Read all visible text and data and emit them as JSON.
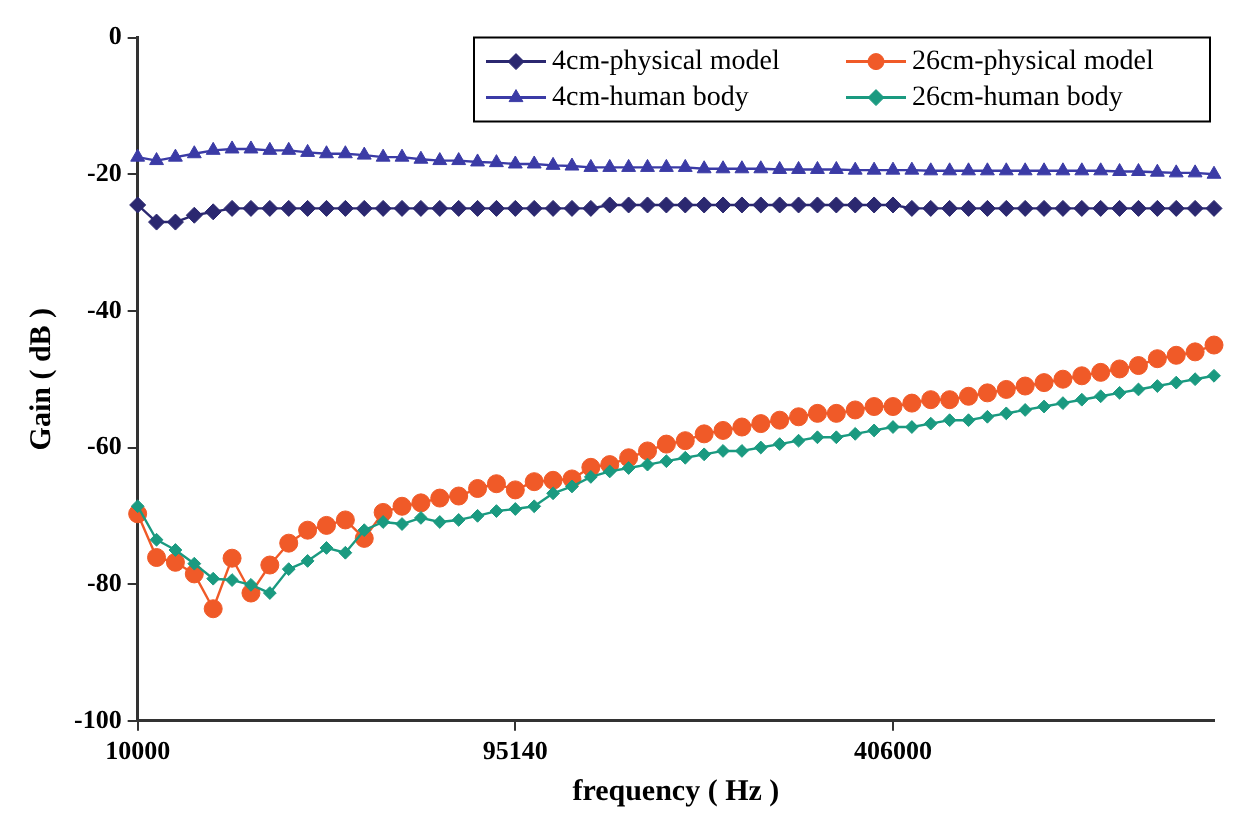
{
  "chart_data": {
    "type": "line",
    "xlabel": "frequency ( Hz )",
    "ylabel": "Gain ( dB )",
    "categories": [
      "10000",
      null,
      null,
      null,
      null,
      null,
      null,
      null,
      null,
      null,
      null,
      null,
      null,
      null,
      null,
      null,
      null,
      null,
      null,
      null,
      "95140",
      null,
      null,
      null,
      null,
      null,
      null,
      null,
      null,
      null,
      null,
      null,
      null,
      null,
      null,
      null,
      null,
      null,
      null,
      null,
      "406000",
      null,
      null,
      null,
      null,
      null,
      null,
      null,
      null,
      null,
      null,
      null,
      null,
      null,
      null,
      null,
      null,
      null
    ],
    "ylim": [
      -100,
      0
    ],
    "yticks": [
      -100,
      -80,
      -60,
      -40,
      -20,
      0
    ],
    "grid": false,
    "legend": "top right",
    "line_style": "solid",
    "series": [
      {
        "name": "4cm-physical model",
        "color": "#2b2870",
        "marker": "diamond",
        "values": [
          -24.5,
          -27,
          -27,
          -26,
          -25.5,
          -25,
          -25,
          -25,
          -25,
          -25,
          -25,
          -25,
          -25,
          -25,
          -25,
          -25,
          -25,
          -25,
          -25,
          -25,
          -25,
          -25,
          -25,
          -25,
          -25,
          -24.5,
          -24.5,
          -24.5,
          -24.5,
          -24.5,
          -24.5,
          -24.5,
          -24.5,
          -24.5,
          -24.5,
          -24.5,
          -24.5,
          -24.5,
          -24.5,
          -24.5,
          -24.5,
          -25,
          -25,
          -25,
          -25,
          -25,
          -25,
          -25,
          -25,
          -25,
          -25,
          -25,
          -25,
          -25,
          -25,
          -25,
          -25,
          -25
        ]
      },
      {
        "name": "26cm-physical model",
        "color": "#f05a28",
        "marker": "circle",
        "values": [
          -69.7,
          -76.1,
          -76.8,
          -78.5,
          -83.6,
          -76.2,
          -81.3,
          -77.2,
          -74,
          -72.1,
          -71.4,
          -70.6,
          -73.3,
          -69.5,
          -68.6,
          -68.1,
          -67.4,
          -67.1,
          -66,
          -65.3,
          -66.2,
          -65,
          -64.8,
          -64.6,
          -62.9,
          -62.5,
          -61.5,
          -60.5,
          -59.5,
          -59,
          -58,
          -57.5,
          -57,
          -56.5,
          -56,
          -55.5,
          -55,
          -55,
          -54.5,
          -54,
          -54,
          -53.5,
          -53,
          -53,
          -52.5,
          -52,
          -51.5,
          -51,
          -50.5,
          -50,
          -49.5,
          -49,
          -48.5,
          -48,
          -47,
          -46.5,
          -46,
          -45
        ]
      },
      {
        "name": "4cm-human body",
        "color": "#3b3ba6",
        "marker": "triangle",
        "values": [
          -17.5,
          -18,
          -17.5,
          -17,
          -16.5,
          -16.3,
          -16.3,
          -16.5,
          -16.5,
          -16.8,
          -17,
          -17,
          -17.2,
          -17.5,
          -17.5,
          -17.8,
          -18,
          -18,
          -18.2,
          -18.3,
          -18.5,
          -18.5,
          -18.7,
          -18.8,
          -19,
          -19,
          -19,
          -19,
          -19,
          -19,
          -19.2,
          -19.2,
          -19.2,
          -19.2,
          -19.3,
          -19.3,
          -19.3,
          -19.3,
          -19.4,
          -19.4,
          -19.4,
          -19.4,
          -19.5,
          -19.5,
          -19.5,
          -19.5,
          -19.5,
          -19.5,
          -19.5,
          -19.5,
          -19.5,
          -19.5,
          -19.6,
          -19.6,
          -19.7,
          -19.8,
          -19.8,
          -20
        ]
      },
      {
        "name": "26cm-human body",
        "color": "#1a9a80",
        "marker": "diamond",
        "values": [
          -68.6,
          -73.5,
          -75,
          -77,
          -79.2,
          -79.4,
          -80.1,
          -81.3,
          -77.8,
          -76.6,
          -74.7,
          -75.4,
          -72.1,
          -70.9,
          -71.2,
          -70.3,
          -70.9,
          -70.6,
          -70,
          -69.3,
          -69,
          -68.6,
          -66.7,
          -65.7,
          -64.3,
          -63.5,
          -63,
          -62.5,
          -62,
          -61.5,
          -61,
          -60.5,
          -60.5,
          -60,
          -59.5,
          -59,
          -58.5,
          -58.5,
          -58,
          -57.5,
          -57,
          -57,
          -56.5,
          -56,
          -56,
          -55.5,
          -55,
          -54.5,
          -54,
          -53.5,
          -53,
          -52.5,
          -52,
          -51.5,
          -51,
          -50.5,
          -50,
          -49.5
        ]
      }
    ]
  }
}
